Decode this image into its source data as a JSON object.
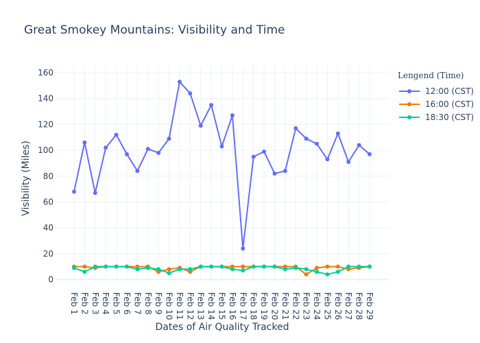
{
  "chart_data": {
    "type": "line",
    "title": "Great Smokey Mountains: Visibility and Time",
    "xlabel": "Dates of Air Quality Tracked",
    "ylabel": "Visibility (Miles)",
    "legend_title": "Lengend (Time)",
    "legend_position": "top-right",
    "grid": true,
    "ylim": [
      -2,
      162
    ],
    "y_ticks": [
      0,
      20,
      40,
      60,
      80,
      100,
      120,
      140,
      160
    ],
    "x": [
      "Feb 1",
      "Feb 2",
      "Feb 3",
      "Feb 4",
      "Feb 5",
      "Feb 6",
      "Feb 7",
      "Feb 8",
      "Feb 9",
      "Feb 10",
      "Feb 11",
      "Feb 12",
      "Feb 13",
      "Feb 14",
      "Feb 15",
      "Feb 16",
      "Feb 17",
      "Feb 18",
      "Feb 19",
      "Feb 20",
      "Feb 21",
      "Feb 22",
      "Feb 23",
      "Feb 24",
      "Feb 25",
      "Feb 26",
      "Feb 27",
      "Feb 28",
      "Feb 29"
    ],
    "series": [
      {
        "name": "12:00 (CST)",
        "color": "#636efa",
        "values": [
          68,
          106,
          67,
          102,
          112,
          97,
          84,
          101,
          98,
          109,
          153,
          144,
          119,
          135,
          103,
          127,
          24,
          95,
          99,
          82,
          84,
          117,
          109,
          105,
          93,
          113,
          91,
          104,
          97
        ]
      },
      {
        "name": "16:00 (CST)",
        "color": "#ef7a0c",
        "values": [
          10,
          10,
          9,
          10,
          10,
          10,
          10,
          10,
          6,
          8,
          9,
          6,
          10,
          10,
          10,
          10,
          10,
          10,
          10,
          10,
          10,
          10,
          4,
          9,
          10,
          10,
          8,
          9,
          10
        ]
      },
      {
        "name": "18:30 (CST)",
        "color": "#00cc96",
        "values": [
          9,
          6,
          10,
          10,
          10,
          10,
          8,
          9,
          8,
          5,
          8,
          8,
          10,
          10,
          10,
          8,
          7,
          10,
          10,
          10,
          8,
          9,
          8,
          6,
          4,
          6,
          10,
          10,
          10
        ]
      }
    ]
  }
}
